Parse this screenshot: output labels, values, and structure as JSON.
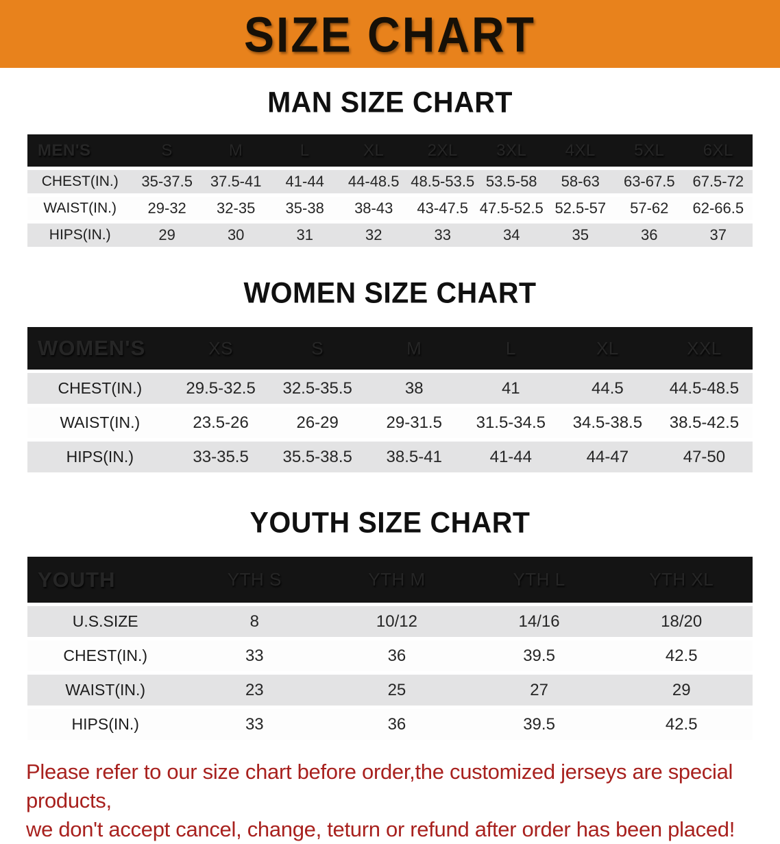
{
  "banner": {
    "title": "SIZE CHART",
    "background_color": "#E8821C",
    "text_color": "#161007"
  },
  "sections": [
    {
      "heading": "MAN SIZE CHART",
      "table": {
        "label": "MEN'S",
        "columns": [
          "S",
          "M",
          "L",
          "XL",
          "2XL",
          "3XL",
          "4XL",
          "5XL",
          "6XL"
        ],
        "rows": [
          {
            "label": "CHEST(IN.)",
            "values": [
              "35-37.5",
              "37.5-41",
              "41-44",
              "44-48.5",
              "48.5-53.5",
              "53.5-58",
              "58-63",
              "63-67.5",
              "67.5-72"
            ]
          },
          {
            "label": "WAIST(IN.)",
            "values": [
              "29-32",
              "32-35",
              "35-38",
              "38-43",
              "43-47.5",
              "47.5-52.5",
              "52.5-57",
              "57-62",
              "62-66.5"
            ]
          },
          {
            "label": "HIPS(IN.)",
            "values": [
              "29",
              "30",
              "31",
              "32",
              "33",
              "34",
              "35",
              "36",
              "37"
            ]
          }
        ]
      }
    },
    {
      "heading": "WOMEN SIZE CHART",
      "table": {
        "label": "WOMEN'S",
        "columns": [
          "XS",
          "S",
          "M",
          "L",
          "XL",
          "XXL"
        ],
        "rows": [
          {
            "label": "CHEST(IN.)",
            "values": [
              "29.5-32.5",
              "32.5-35.5",
              "38",
              "41",
              "44.5",
              "44.5-48.5"
            ]
          },
          {
            "label": "WAIST(IN.)",
            "values": [
              "23.5-26",
              "26-29",
              "29-31.5",
              "31.5-34.5",
              "34.5-38.5",
              "38.5-42.5"
            ]
          },
          {
            "label": "HIPS(IN.)",
            "values": [
              "33-35.5",
              "35.5-38.5",
              "38.5-41",
              "41-44",
              "44-47",
              "47-50"
            ]
          }
        ]
      }
    },
    {
      "heading": "YOUTH SIZE CHART",
      "table": {
        "label": "YOUTH",
        "columns": [
          "YTH S",
          "YTH M",
          "YTH L",
          "YTH XL"
        ],
        "rows": [
          {
            "label": "U.S.SIZE",
            "values": [
              "8",
              "10/12",
              "14/16",
              "18/20"
            ]
          },
          {
            "label": "CHEST(IN.)",
            "values": [
              "33",
              "36",
              "39.5",
              "42.5"
            ]
          },
          {
            "label": "WAIST(IN.)",
            "values": [
              "23",
              "25",
              "27",
              "29"
            ]
          },
          {
            "label": "HIPS(IN.)",
            "values": [
              "33",
              "36",
              "39.5",
              "42.5"
            ]
          }
        ]
      }
    }
  ],
  "footer": {
    "line1": "Please refer to our size chart before order,the customized jerseys are special products,",
    "line2": "we don't accept cancel, change, teturn or refund after order has been placed!",
    "text_color": "#A8211E"
  }
}
